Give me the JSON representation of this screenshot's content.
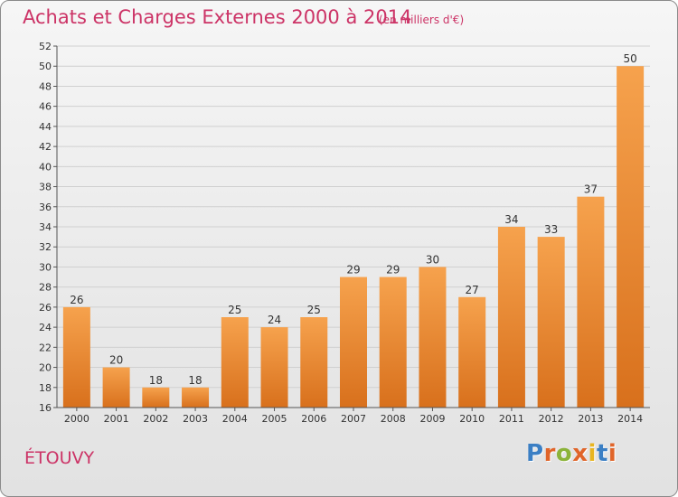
{
  "header": {
    "title": "Achats et Charges Externes 2000 à 2014",
    "subtitle": "(en milliers d'€)"
  },
  "footer": {
    "commune": "ÉTOUVY",
    "logo": {
      "letters": [
        "P",
        "r",
        "o",
        "x",
        "i",
        "t",
        "i"
      ],
      "colors": [
        "#3b7fc4",
        "#e0652a",
        "#8bb33a",
        "#e0652a",
        "#e8b521",
        "#3b7fc4",
        "#e0652a"
      ]
    }
  },
  "colors": {
    "bar_top": "#f6a24d",
    "bar_bottom": "#d8701c",
    "title": "#cc3366",
    "grid": "#d0d0d0",
    "axis": "#555555"
  },
  "chart_data": {
    "type": "bar",
    "title": "Achats et Charges Externes 2000 à 2014",
    "subtitle": "(en milliers d'€)",
    "categories": [
      "2000",
      "2001",
      "2002",
      "2003",
      "2004",
      "2005",
      "2006",
      "2007",
      "2008",
      "2009",
      "2010",
      "2011",
      "2012",
      "2013",
      "2014"
    ],
    "values": [
      26,
      20,
      18,
      18,
      25,
      24,
      25,
      29,
      29,
      30,
      27,
      34,
      33,
      37,
      50
    ],
    "xlabel": "",
    "ylabel": "",
    "ylim": [
      16,
      52
    ],
    "yticks": [
      16,
      18,
      20,
      22,
      24,
      26,
      28,
      30,
      32,
      34,
      36,
      38,
      40,
      42,
      44,
      46,
      48,
      50,
      52
    ],
    "grid": true,
    "data_labels": true
  }
}
